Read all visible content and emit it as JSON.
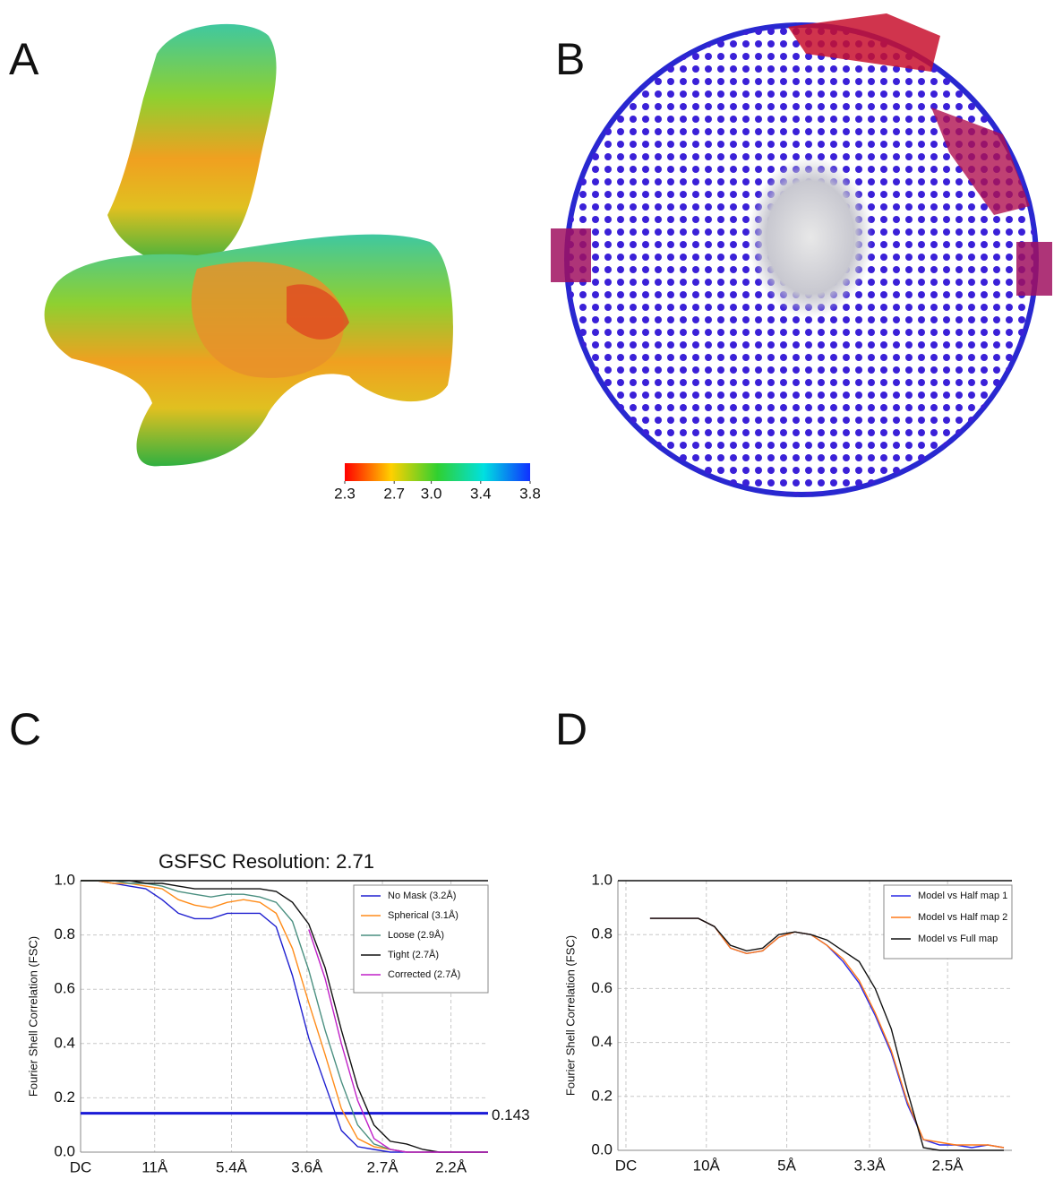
{
  "panel_labels": [
    "A",
    "B",
    "C",
    "D"
  ],
  "colorbar": {
    "lim": [
      2.3,
      3.8
    ],
    "ticks": [
      2.3,
      2.7,
      {
        "value": 3,
        "label": "3.0"
      },
      3.4,
      3.8
    ]
  },
  "chart_data": [
    {
      "type": "line",
      "title": "GSFSC Resolution: 2.71",
      "ylabel": "Fourier Shell Correlation (FSC)",
      "x": [
        0,
        0.02,
        0.04,
        0.06,
        0.08,
        0.1,
        0.12,
        0.14,
        0.16,
        0.18,
        0.2,
        0.22,
        0.24,
        0.26,
        0.28,
        0.3,
        0.32,
        0.34,
        0.36,
        0.38,
        0.4,
        0.42,
        0.44,
        0.46,
        0.48,
        0.5
      ],
      "xlim": [
        0,
        0.5
      ],
      "xticks": [
        {
          "value": 0,
          "label": "DC"
        },
        {
          "value": 0.0909,
          "label": "11Å"
        },
        {
          "value": 0.1852,
          "label": "5.4Å"
        },
        {
          "value": 0.2778,
          "label": "3.6Å"
        },
        {
          "value": 0.3704,
          "label": "2.7Å"
        },
        {
          "value": 0.4545,
          "label": "2.2Å"
        }
      ],
      "ylim": [
        0,
        1
      ],
      "yticks": [
        {
          "value": 0,
          "label": "0.0"
        },
        0.2,
        0.4,
        0.6,
        0.8,
        {
          "value": 1,
          "label": "1.0"
        }
      ],
      "grid": true,
      "legend": "upper right",
      "threshold": 0.143,
      "threshold_color": "#1a1ad6",
      "series": [
        {
          "name": "No Mask (3.2Å)",
          "color": "#2020d0",
          "values": [
            1.0,
            1.0,
            0.99,
            0.98,
            0.97,
            0.93,
            0.88,
            0.86,
            0.86,
            0.88,
            0.88,
            0.88,
            0.83,
            0.65,
            0.42,
            0.25,
            0.08,
            0.02,
            0.01,
            0,
            0,
            0,
            0,
            0,
            0,
            0
          ]
        },
        {
          "name": "Spherical (3.1Å)",
          "color": "#ff8c1a",
          "values": [
            1.0,
            1.0,
            0.99,
            0.99,
            0.98,
            0.97,
            0.93,
            0.91,
            0.9,
            0.92,
            0.93,
            0.92,
            0.88,
            0.75,
            0.55,
            0.36,
            0.16,
            0.05,
            0.02,
            0.01,
            0,
            0,
            0,
            0,
            0,
            0
          ]
        },
        {
          "name": "Loose (2.9Å)",
          "color": "#4a8f80",
          "values": [
            1.0,
            1.0,
            1.0,
            0.99,
            0.99,
            0.98,
            0.96,
            0.95,
            0.94,
            0.95,
            0.95,
            0.94,
            0.92,
            0.85,
            0.67,
            0.45,
            0.26,
            0.1,
            0.03,
            0.01,
            0,
            0,
            0,
            0,
            0,
            0
          ]
        },
        {
          "name": "Tight (2.7Å)",
          "color": "#111111",
          "values": [
            1.0,
            1.0,
            1.0,
            1.0,
            0.99,
            0.99,
            0.98,
            0.97,
            0.97,
            0.97,
            0.97,
            0.97,
            0.96,
            0.92,
            0.84,
            0.68,
            0.45,
            0.24,
            0.1,
            0.04,
            0.03,
            0.01,
            0,
            0,
            0,
            0
          ]
        },
        {
          "name": "Corrected (2.7Å)",
          "color": "#c020c8",
          "values": [
            null,
            null,
            null,
            null,
            null,
            null,
            null,
            null,
            null,
            null,
            null,
            null,
            null,
            null,
            0.82,
            0.64,
            0.4,
            0.19,
            0.05,
            0.01,
            0,
            0,
            0,
            0,
            0,
            0
          ]
        }
      ]
    },
    {
      "type": "line",
      "ylabel": "Fourier Shell Correlation (FSC)",
      "x": [
        0.03,
        0.05,
        0.07,
        0.09,
        0.11,
        0.13,
        0.15,
        0.17,
        0.19,
        0.21,
        0.23,
        0.25,
        0.27,
        0.29,
        0.31,
        0.33,
        0.35,
        0.37,
        0.39,
        0.41,
        0.43,
        0.45,
        0.47
      ],
      "xlim": [
        -0.01,
        0.48
      ],
      "xticks": [
        {
          "value": 0,
          "label": "DC"
        },
        {
          "value": 0.1,
          "label": "10Å"
        },
        {
          "value": 0.2,
          "label": "5Å"
        },
        {
          "value": 0.303,
          "label": "3.3Å"
        },
        {
          "value": 0.4,
          "label": "2.5Å"
        }
      ],
      "ylim": [
        0,
        1
      ],
      "yticks": [
        {
          "value": 0,
          "label": "0.0"
        },
        0.2,
        0.4,
        0.6,
        0.8,
        {
          "value": 1,
          "label": "1.0"
        }
      ],
      "grid": true,
      "legend": "upper right",
      "series": [
        {
          "name": "Model vs Half map 1",
          "color": "#2a2ae6",
          "values": [
            0.86,
            0.86,
            0.86,
            0.86,
            0.83,
            0.75,
            0.73,
            0.74,
            0.79,
            0.81,
            0.8,
            0.76,
            0.7,
            0.62,
            0.5,
            0.36,
            0.17,
            0.04,
            0.02,
            0.02,
            0.01,
            0.02,
            0.01
          ]
        },
        {
          "name": "Model vs Half map 2",
          "color": "#ff7a1a",
          "values": [
            0.86,
            0.86,
            0.86,
            0.86,
            0.83,
            0.75,
            0.73,
            0.74,
            0.79,
            0.81,
            0.8,
            0.76,
            0.71,
            0.63,
            0.51,
            0.37,
            0.18,
            0.04,
            0.03,
            0.02,
            0.02,
            0.02,
            0.01
          ]
        },
        {
          "name": "Model vs Full map",
          "color": "#111111",
          "values": [
            0.86,
            0.86,
            0.86,
            0.86,
            0.83,
            0.76,
            0.74,
            0.75,
            0.8,
            0.81,
            0.8,
            0.78,
            0.74,
            0.7,
            0.6,
            0.45,
            0.22,
            0.01,
            0,
            0,
            0,
            0,
            0
          ]
        }
      ]
    }
  ]
}
